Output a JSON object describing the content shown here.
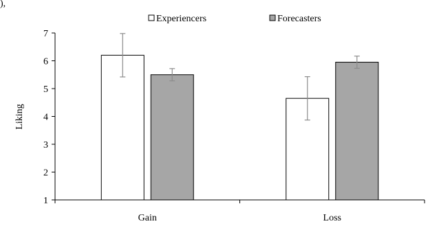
{
  "corner_fragment": "),",
  "chart_data": {
    "type": "bar",
    "categories": [
      "Gain",
      "Loss"
    ],
    "series": [
      {
        "name": "Experiencers",
        "values": [
          6.2,
          4.65
        ],
        "error": [
          0.78,
          0.78
        ],
        "color": "#ffffff"
      },
      {
        "name": "Forecasters",
        "values": [
          5.5,
          5.95
        ],
        "error": [
          0.22,
          0.22
        ],
        "color": "#a6a6a6"
      }
    ],
    "xlabel": "",
    "ylabel": "Liking",
    "ylim": [
      1,
      7
    ],
    "yticks": [
      "1",
      "2",
      "3",
      "4",
      "5",
      "6",
      "7"
    ],
    "grid": false,
    "legend": "top-center",
    "error_bar_color": "#8c8c8c"
  }
}
